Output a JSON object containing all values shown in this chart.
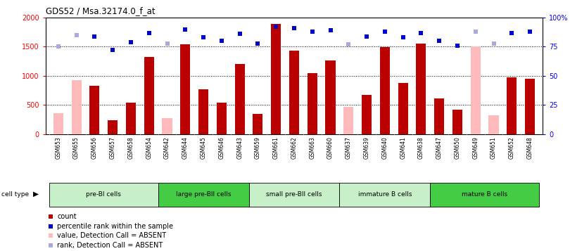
{
  "title": "GDS52 / Msa.32174.0_f_at",
  "samples": [
    "GSM653",
    "GSM655",
    "GSM656",
    "GSM657",
    "GSM658",
    "GSM654",
    "GSM642",
    "GSM644",
    "GSM645",
    "GSM646",
    "GSM643",
    "GSM659",
    "GSM661",
    "GSM662",
    "GSM663",
    "GSM660",
    "GSM637",
    "GSM639",
    "GSM640",
    "GSM641",
    "GSM638",
    "GSM647",
    "GSM650",
    "GSM649",
    "GSM651",
    "GSM652",
    "GSM648"
  ],
  "counts": [
    null,
    null,
    830,
    245,
    540,
    1320,
    null,
    1540,
    770,
    540,
    1210,
    355,
    1890,
    1430,
    1050,
    1260,
    null,
    680,
    1490,
    880,
    1560,
    610,
    420,
    null,
    null,
    970,
    950
  ],
  "absent_counts": [
    360,
    930,
    null,
    null,
    null,
    null,
    280,
    null,
    null,
    null,
    null,
    null,
    null,
    null,
    null,
    null,
    470,
    null,
    null,
    null,
    null,
    null,
    null,
    1500,
    330,
    null,
    null
  ],
  "ranks_pct": [
    null,
    null,
    84,
    72,
    79,
    87,
    null,
    90,
    83,
    80,
    86,
    78,
    92,
    91,
    88,
    89,
    null,
    84,
    88,
    83,
    87,
    80,
    76,
    null,
    null,
    87,
    88
  ],
  "absent_ranks_pct": [
    75,
    85,
    null,
    null,
    null,
    null,
    78,
    null,
    null,
    null,
    null,
    null,
    null,
    null,
    null,
    null,
    77,
    null,
    null,
    null,
    null,
    null,
    null,
    88,
    78,
    null,
    null
  ],
  "cell_groups": [
    {
      "label": "pre-BI cells",
      "start": 0,
      "end": 6,
      "color": "#c8f0c8"
    },
    {
      "label": "large pre-BII cells",
      "start": 6,
      "end": 11,
      "color": "#44cc44"
    },
    {
      "label": "small pre-BII cells",
      "start": 11,
      "end": 16,
      "color": "#c8f0c8"
    },
    {
      "label": "immature B cells",
      "start": 16,
      "end": 21,
      "color": "#c8f0c8"
    },
    {
      "label": "mature B cells",
      "start": 21,
      "end": 27,
      "color": "#44cc44"
    }
  ],
  "ylim_left": [
    0,
    2000
  ],
  "ylim_right": [
    0,
    100
  ],
  "yticks_left": [
    0,
    500,
    1000,
    1500,
    2000
  ],
  "yticks_right": [
    0,
    25,
    50,
    75,
    100
  ],
  "ytick_labels_right": [
    "0",
    "25",
    "50",
    "75",
    "100%"
  ],
  "bar_color_present": "#bb0000",
  "bar_color_absent": "#ffbbbb",
  "dot_color_present": "#0000cc",
  "dot_color_absent": "#aaaadd",
  "bar_width": 0.55,
  "fig_w": 8.1,
  "fig_h": 3.57
}
